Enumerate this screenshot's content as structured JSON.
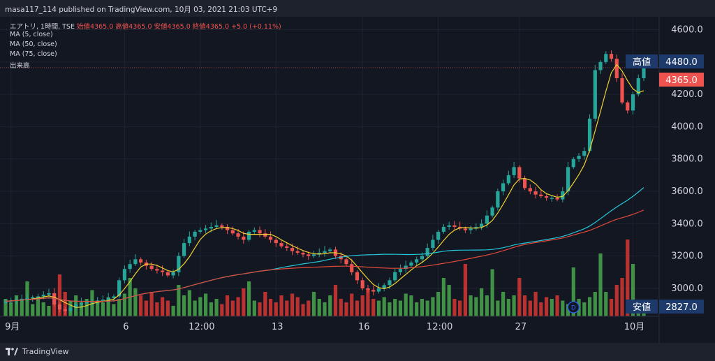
{
  "header": {
    "published": "masa117_114 published on TradingView.com, 10月 03, 2021 21:03 UTC+9"
  },
  "legend": {
    "symbol": "エアトリ, 1時間, TSE",
    "ohlc": "始値4365.0 高値4365.0 安値4365.0 終値4365.0 +5.0 (+0.11%)",
    "ma5": "MA (5, close)",
    "ma50": "MA (50, close)",
    "ma75": "MA (75, close)",
    "volume": "出来高"
  },
  "footer": {
    "brand": "TradingView"
  },
  "colors": {
    "background": "#131722",
    "up": "#26a69a",
    "down": "#ef5350",
    "ma5": "#f0d030",
    "ma50": "#26c6da",
    "ma75": "#e04a3a",
    "vol_up": "#4caf50",
    "vol_down": "#e53935",
    "badge": "#1d3a6a"
  },
  "chart_data": {
    "type": "candlestick",
    "ylim": [
      2827,
      4680
    ],
    "yticks": [
      "4600.0",
      "4400.0",
      "4200.0",
      "4000.0",
      "3800.0",
      "3600.0",
      "3400.0",
      "3200.0",
      "3000.0"
    ],
    "ytick_values": [
      4600,
      4400,
      4200,
      4000,
      3800,
      3600,
      3400,
      3200,
      3000
    ],
    "xticks": [
      "9月",
      "6",
      "12:00",
      "13",
      "16",
      "12:00",
      "27",
      "10月"
    ],
    "xtick_bars": [
      1,
      22,
      36,
      50,
      66,
      80,
      95,
      116
    ],
    "last_price": "4365.0",
    "high_label": "高値",
    "high_value": "4480.0",
    "low_label": "安値",
    "low_value": "2827.0",
    "event_marker": "D",
    "event_bar": 105,
    "closes": [
      2920,
      2925,
      2930,
      2935,
      2940,
      2945,
      2950,
      2960,
      2970,
      2900,
      2870,
      2860,
      2880,
      2900,
      2910,
      2915,
      2920,
      2925,
      2930,
      2940,
      2950,
      3050,
      3120,
      3150,
      3180,
      3160,
      3140,
      3120,
      3110,
      3100,
      3080,
      3100,
      3200,
      3280,
      3320,
      3350,
      3360,
      3370,
      3380,
      3390,
      3380,
      3360,
      3340,
      3320,
      3300,
      3350,
      3360,
      3340,
      3320,
      3300,
      3280,
      3260,
      3250,
      3230,
      3220,
      3210,
      3200,
      3210,
      3220,
      3230,
      3240,
      3200,
      3180,
      3150,
      3100,
      3050,
      3000,
      2990,
      2980,
      3000,
      3020,
      3050,
      3100,
      3120,
      3140,
      3160,
      3180,
      3200,
      3250,
      3300,
      3350,
      3380,
      3390,
      3380,
      3370,
      3360,
      3370,
      3380,
      3400,
      3450,
      3500,
      3600,
      3650,
      3700,
      3750,
      3680,
      3620,
      3600,
      3580,
      3570,
      3560,
      3560,
      3550,
      3600,
      3750,
      3800,
      3820,
      3850,
      4050,
      4350,
      4400,
      4450,
      4420,
      4300,
      4150,
      4100,
      4200,
      4300,
      4365
    ],
    "volumes": [
      10,
      8,
      12,
      9,
      20,
      7,
      11,
      8,
      6,
      10,
      24,
      14,
      9,
      12,
      8,
      10,
      15,
      9,
      8,
      11,
      7,
      10,
      13,
      22,
      16,
      12,
      9,
      14,
      8,
      11,
      9,
      6,
      18,
      12,
      15,
      9,
      11,
      13,
      8,
      10,
      7,
      12,
      9,
      11,
      16,
      20,
      9,
      8,
      14,
      10,
      8,
      12,
      9,
      13,
      11,
      7,
      9,
      14,
      10,
      8,
      12,
      18,
      10,
      8,
      13,
      9,
      12,
      16,
      10,
      9,
      11,
      8,
      10,
      9,
      13,
      12,
      8,
      10,
      9,
      11,
      14,
      22,
      18,
      10,
      9,
      30,
      12,
      11,
      16,
      12,
      27,
      9,
      14,
      10,
      12,
      22,
      12,
      9,
      14,
      8,
      11,
      10,
      12,
      9,
      7,
      28,
      10,
      8,
      11,
      14,
      36,
      14,
      10,
      18,
      22,
      44,
      30,
      9,
      6
    ]
  }
}
